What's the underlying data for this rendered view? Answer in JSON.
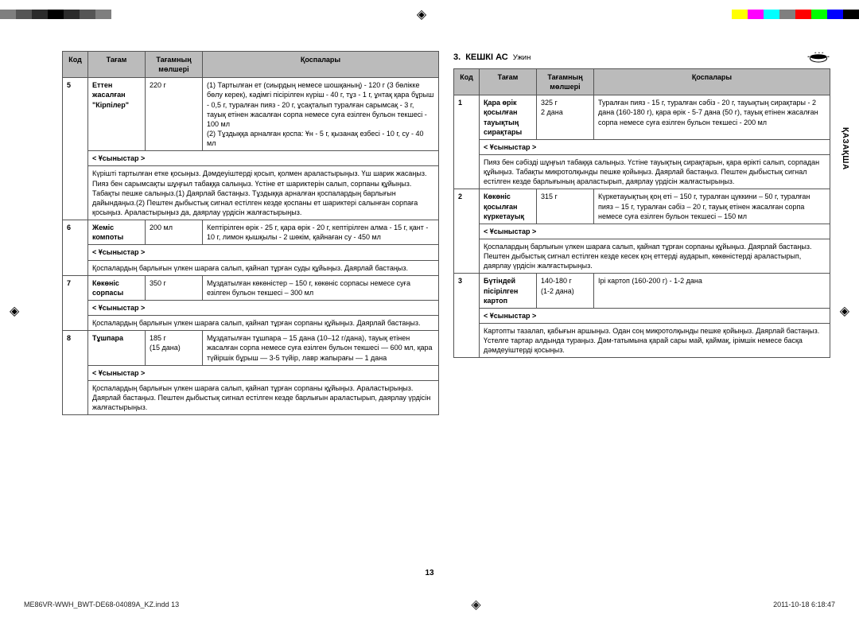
{
  "colorbars": {
    "left_swatches": [
      "#7f7f7f",
      "#555555",
      "#2b2b2b",
      "#000000",
      "#2b2b2b",
      "#555555",
      "#7f7f7f"
    ],
    "right_swatches": [
      "#ffff00",
      "#ff00ff",
      "#00ffff",
      "#7f7f7f",
      "#ff0000",
      "#00ff00",
      "#0000ff",
      "#000000"
    ]
  },
  "sideTab": "ҚАЗАҚША",
  "section": {
    "number": "3.",
    "title": "КЕШКІ АС",
    "subtitle": "Ужин"
  },
  "headers": {
    "code": "Код",
    "name": "Тағам",
    "amount": "Тағамның мөлшері",
    "ingredients": "Қоспалары",
    "hints": "< Ұсыныстар >"
  },
  "left_rows": [
    {
      "code": "5",
      "name": "Еттен жасалған \"Кірпілер\"",
      "amount": "220 г",
      "ingredients": "(1) Тартылған ет (сиырдың немесе шошқаның) - 120 г (3 бөлікке бөлу керек), кәдімгі пісірілген күріш - 40 г, тұз - 1 г, ұнтақ қара бұрыш - 0,5 г, туралған пияз - 20 г, ұсақталып туралған сарымсақ - 3 г, тауық етінен жасалған сорпа немесе суға езілген бульон текшесі - 100 мл\n(2) Тұздыққа арналған қоспа: Ұн - 5 г, қызанақ езбесі - 10 г, су - 40 мл",
      "hints": "Күрішті тартылған етке қосыңыз. Дәмдеуіштерді қосып, қолмен араластырыңыз. Үш шарик жасаңыз. Пияз бен сарымсақты шұңғыл табаққа салыңыз. Үстіне ет шариктерін салып, сорпаны құйыңыз. Табақты пешке салыңыз.(1) Даярлай бастаңыз. Тұздыққа арналған қоспалардың барлығын дайындаңыз.(2) Пештен дыбыстық сигнал естілген кезде қоспаны ет шариктері салынған сорпаға қосыңыз. Араластырыңыз да, даярлау үрдісін жалғастырыңыз."
    },
    {
      "code": "6",
      "name": "Жеміс компоты",
      "amount": "200 мл",
      "ingredients": "Кептірілген өрік - 25 г, қара өрік - 20 г, кептірілген алма - 15 г, қант - 10 г, лимон қышқылы - 2 шөкім, қайнаған су - 450 мл",
      "hints": "Қоспалардың барлығын үлкен шараға салып, қайнап тұрған суды құйыңыз. Даярлай бастаңыз."
    },
    {
      "code": "7",
      "name": "Көкөніс сорпасы",
      "amount": "350 г",
      "ingredients": "Мұздатылған көкөністер – 150 г, көкөніс сорпасы немесе суға езілген бульон текшесі – 300 мл",
      "hints": "Қоспалардың барлығын үлкен шараға салып, қайнап тұрған сорпаны құйыңыз. Даярлай бастаңыз."
    },
    {
      "code": "8",
      "name": "Тұшпара",
      "amount": "185 г\n(15 дана)",
      "ingredients": "Мұздатылған тұшпара – 15 дана (10–12 г/дана), тауық етінен жасалған сорпа немесе суға езілген бульон текшесі — 600 мл, қара түйіршік бұрыш — 3-5 түйір, лавр жапырағы — 1 дана",
      "hints": "Қоспалардың барлығын үлкен шараға салып, қайнап тұрған сорпаны құйыңыз. Араластырыңыз. Даярлай бастаңыз. Пештен дыбыстық сигнал естілген кезде барлығын араластырып, даярлау үрдісін жалғастырыңыз."
    }
  ],
  "right_rows": [
    {
      "code": "1",
      "name": "Қара өрік қосылған тауықтың сирақтары",
      "amount": "325 г\n2 дана",
      "ingredients": "Туралған пияз - 15 г, туралған сәбіз - 20 г, тауықтың сирақтары - 2 дана (160-180 г), қара өрік - 5-7 дана (50 г), тауық етінен жасалған сорпа немесе суға езілген бульон текшесі - 200 мл",
      "hints": "Пияз бен сәбізді шұңғыл табаққа салыңыз. Үстіне тауықтың сирақтарын, қара өрікті салып, сорпадан құйыңыз. Табақты микротолқынды пешке қойыңыз. Даярлай бастаңыз. Пештен дыбыстық сигнал естілген кезде барлығының араластырып, даярлау үрдісін жалғастырыңыз."
    },
    {
      "code": "2",
      "name": "Көкөніс қосылған күркетауық",
      "amount": "315 г",
      "ingredients": "Күркетауықтың қоң еті – 150 г, туралған цуккини – 50 г, туралған пияз – 15 г, туралған сәбіз – 20 г, тауық етінен жасалған сорпа немесе суға езілген бульон текшесі – 150 мл",
      "hints": "Қоспалардың барлығын үлкен шараға салып, қайнап тұрған сорпаны құйыңыз. Даярлай бастаңыз.\nПештен дыбыстық сигнал естілген кезде кесек қоң еттерді аударып, көкөністерді араластырып, даярлау үрдісін жалғастырыңыз."
    },
    {
      "code": "3",
      "name": "Бүтіндей пісірілген картоп",
      "amount": "140-180 г\n(1-2 дана)",
      "ingredients": "Ірі картоп (160-200 г) - 1-2 дана",
      "hints": "Картопты тазалап, қабығын аршыңыз. Одан соң микротолқынды пешке қойыңыз. Даярлай бастаңыз. Үстелге тартар алдында тураңыз. Дәм-татымына қарай сары май, қаймақ, ірімшік немесе басқа дәмдеуіштерді қосыңыз."
    }
  ],
  "pageNumber": "13",
  "footer": {
    "file": "ME86VR-WWH_BWT-DE68-04089A_KZ.indd   13",
    "datetime": "2011-10-18   6:18:47"
  }
}
